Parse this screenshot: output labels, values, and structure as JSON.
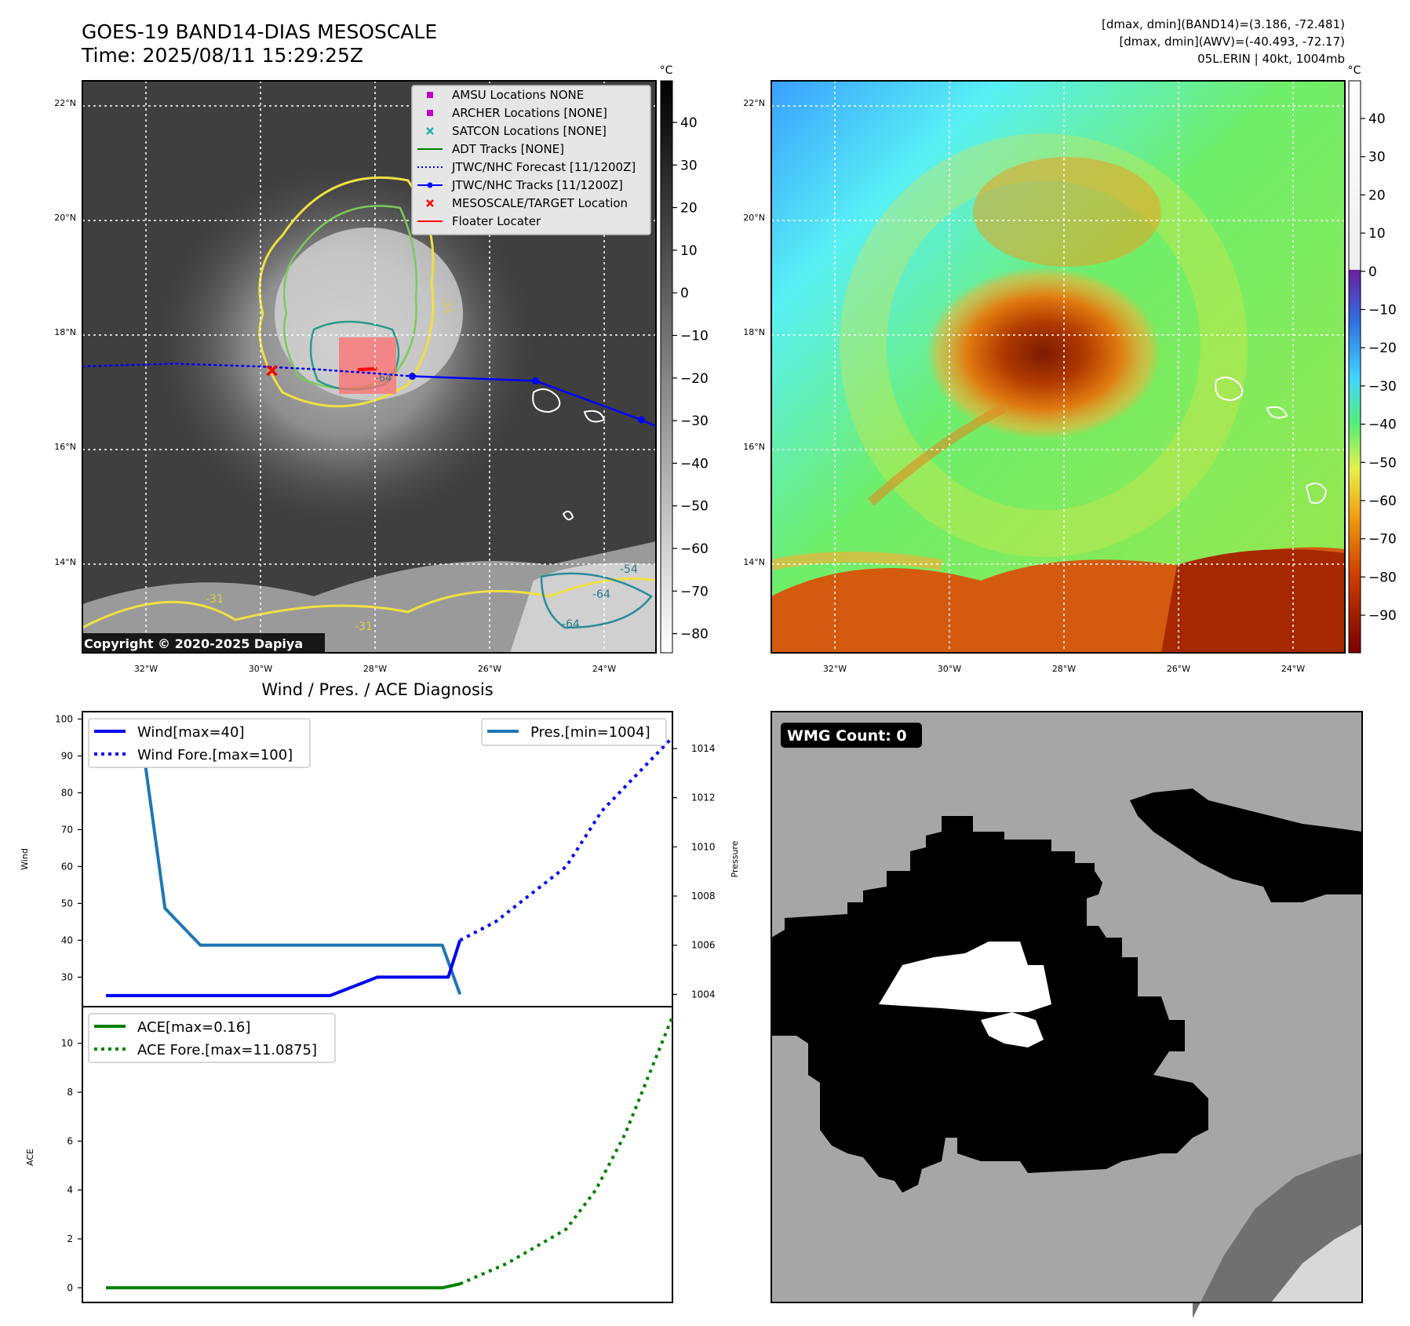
{
  "header": {
    "title_line1": "GOES-19 BAND14-DIAS MESOSCALE",
    "title_line2": "Time: 2025/08/11 15:29:25Z",
    "info_line1": "[dmax, dmin](BAND14)=(3.186, -72.481)",
    "info_line2": "[dmax, dmin](AWV)=(-40.493, -72.17)",
    "info_line3": "05L.ERIN | 40kt, 1004mb"
  },
  "map": {
    "lon_labels": [
      "32°W",
      "30°W",
      "28°W",
      "26°W",
      "24°W"
    ],
    "lat_labels": [
      "22°N",
      "20°N",
      "18°N",
      "16°N",
      "14°N"
    ],
    "copyright": "Copyright © 2020-2025 Dapiya",
    "contour_labels": [
      "-31",
      "-31",
      "-31",
      "-54",
      "-64",
      "-64",
      "-64"
    ],
    "legend": [
      {
        "label": "AMSU Locations NONE",
        "marker": "square",
        "color": "#c000c0"
      },
      {
        "label": "ARCHER Locations [NONE]",
        "marker": "square",
        "color": "#c000c0"
      },
      {
        "label": "SATCON Locations [NONE]",
        "marker": "x",
        "color": "#1fb5b0"
      },
      {
        "label": "ADT Tracks [NONE]",
        "marker": "line",
        "color": "#008000"
      },
      {
        "label": "JTWC/NHC Forecast [11/1200Z]",
        "marker": "dotted",
        "color": "#0000ff"
      },
      {
        "label": "JTWC/NHC Tracks [11/1200Z]",
        "marker": "line-dot",
        "color": "#0000ff"
      },
      {
        "label": "MESOSCALE/TARGET Location",
        "marker": "x",
        "color": "#ff0000"
      },
      {
        "label": "Floater Locater",
        "marker": "line",
        "color": "#ff0000"
      }
    ],
    "track": {
      "lon": [
        -27.35,
        -25.2,
        -23.35,
        -22.2
      ],
      "lat": [
        17.28,
        17.2,
        16.52,
        16.0
      ]
    },
    "forecast": {
      "lon": [
        -33.2,
        -31.5,
        -30.0,
        -29.0,
        -28.0,
        -27.35
      ],
      "lat": [
        17.45,
        17.5,
        17.45,
        17.4,
        17.33,
        17.28
      ]
    },
    "target_location": {
      "lon": -29.8,
      "lat": 17.38
    }
  },
  "colorbar1": {
    "unit": "°C",
    "ticks": [
      "40",
      "30",
      "20",
      "10",
      "0",
      "−10",
      "−20",
      "−30",
      "−40",
      "−50",
      "−60",
      "−70",
      "−80"
    ]
  },
  "colorbar2": {
    "unit": "°C",
    "ticks": [
      "40",
      "30",
      "20",
      "10",
      "0",
      "−10",
      "−20",
      "−30",
      "−40",
      "−50",
      "−60",
      "−70",
      "−80",
      "−90"
    ]
  },
  "diagnosis": {
    "title": "Wind / Pres. / ACE Diagnosis",
    "wind_ylabel": "Wind",
    "pres_ylabel": "Pressure",
    "ace_ylabel": "ACE",
    "legend": {
      "wind": "Wind[max=40]",
      "wind_fore": "Wind Fore.[max=100]",
      "pres": "Pres.[min=1004]",
      "ace": "ACE[max=0.16]",
      "ace_fore": "ACE Fore.[max=11.0875]"
    }
  },
  "chart_data": [
    {
      "type": "line",
      "title": "Wind / Pres. / ACE Diagnosis",
      "ylabel": "Wind",
      "ylim": [
        22,
        102
      ],
      "yticks": [
        30,
        40,
        50,
        60,
        70,
        80,
        90,
        100
      ],
      "xlim": [
        -2,
        98
      ],
      "series": [
        {
          "name": "Wind[max=40]",
          "color": "#0000ee",
          "style": "solid",
          "x": [
            2,
            14,
            26,
            32,
            38,
            40,
            48,
            50,
            58,
            60,
            62
          ],
          "values": [
            25,
            25,
            25,
            25,
            25,
            25,
            30,
            30,
            30,
            30,
            40
          ]
        },
        {
          "name": "Wind Fore.[max=100]",
          "color": "#0000ee",
          "style": "dotted",
          "x": [
            62,
            68,
            80,
            86,
            92,
            98
          ],
          "values": [
            40,
            45,
            60,
            75,
            85,
            95
          ]
        }
      ]
    },
    {
      "type": "line",
      "ylabel": "Pressure",
      "ylim": [
        1003.5,
        1015.5
      ],
      "yticks": [
        1004,
        1006,
        1008,
        1010,
        1012,
        1014
      ],
      "xlim": [
        -2,
        98
      ],
      "series": [
        {
          "name": "Pres.[min=1004]",
          "color": "#1f77b4",
          "style": "solid",
          "x": [
            2,
            5,
            8,
            12,
            18,
            26,
            34,
            42,
            50,
            59,
            62
          ],
          "values": [
            1015,
            1015,
            1014.5,
            1007.5,
            1006,
            1006,
            1006,
            1006,
            1006,
            1006,
            1004
          ]
        }
      ]
    },
    {
      "type": "line",
      "ylabel": "ACE",
      "ylim": [
        -0.6,
        11.5
      ],
      "yticks": [
        0,
        2,
        4,
        6,
        8,
        10
      ],
      "xlim": [
        -2,
        98
      ],
      "series": [
        {
          "name": "ACE[max=0.16]",
          "color": "#008000",
          "style": "solid",
          "x": [
            2,
            10,
            20,
            30,
            40,
            50,
            59,
            62
          ],
          "values": [
            0,
            0,
            0,
            0,
            0,
            0,
            0,
            0.16
          ]
        },
        {
          "name": "ACE Fore.[max=11.0875]",
          "color": "#008000",
          "style": "dotted",
          "x": [
            62,
            70,
            80,
            85,
            90,
            98
          ],
          "values": [
            0.16,
            1.0,
            2.4,
            4.0,
            6.3,
            11.0875
          ]
        }
      ]
    }
  ],
  "wmg": {
    "label": "WMG Count: 0"
  }
}
